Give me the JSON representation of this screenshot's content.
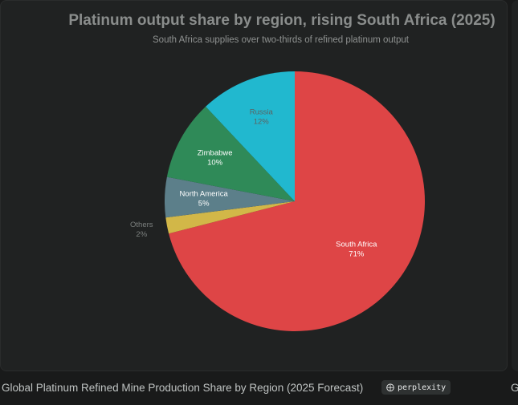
{
  "chart_data": {
    "type": "pie",
    "title": "Platinum output share by region, rising South Africa (2025)",
    "subtitle": "South Africa supplies over two-thirds of refined platinum output",
    "slices": [
      {
        "label": "South Africa",
        "value": 71,
        "display": "71%",
        "color": "#de4546"
      },
      {
        "label": "Others",
        "value": 2,
        "display": "2%",
        "color": "#d2b748"
      },
      {
        "label": "North America",
        "value": 5,
        "display": "5%",
        "color": "#5c7f8a"
      },
      {
        "label": "Zimbabwe",
        "value": 10,
        "display": "10%",
        "color": "#2f8a58"
      },
      {
        "label": "Russia",
        "value": 12,
        "display": "12%",
        "color": "#21b8cf"
      }
    ]
  },
  "caption": {
    "text": "Global Platinum Refined Mine Production Share by Region (2025 Forecast)",
    "badge_label": "perplexity",
    "badge_icon": "perplexity-logo-icon",
    "next_card_initial": "G"
  }
}
